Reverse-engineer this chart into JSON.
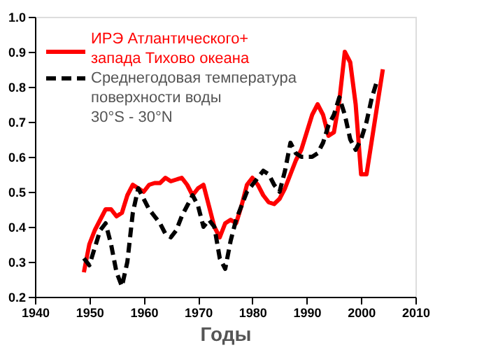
{
  "chart_data": {
    "type": "line",
    "xlabel": "Годы",
    "xlim": [
      1940,
      2010
    ],
    "xticks": [
      1940,
      1950,
      1960,
      1970,
      1980,
      1990,
      2000,
      2010
    ],
    "ylim": [
      0.2,
      1.0
    ],
    "yticks": [
      {
        "value": 0.2,
        "label": "0.2"
      },
      {
        "value": 0.3,
        "label": "0.3"
      },
      {
        "value": 0.4,
        "label": "0.4"
      },
      {
        "value": 0.5,
        "label": "0.5"
      },
      {
        "value": 0.6,
        "label": "0.6"
      },
      {
        "value": 0.7,
        "label": "0.7"
      },
      {
        "value": 0.8,
        "label": "0.8"
      },
      {
        "value": 0.9,
        "label": "0.9"
      },
      {
        "value": 1.0,
        "label": "1.0"
      }
    ],
    "grid": false,
    "legend": "top left",
    "marker": "none",
    "series": [
      {
        "name": "ИРЭ Атлантического+\nзапада Тихово океана",
        "color": "#ff0000",
        "line_style": "solid",
        "x": [
          1949,
          1950,
          1951,
          1952,
          1953,
          1954,
          1955,
          1956,
          1957,
          1958,
          1959,
          1960,
          1961,
          1962,
          1963,
          1964,
          1965,
          1966,
          1967,
          1968,
          1969,
          1970,
          1971,
          1972,
          1973,
          1974,
          1975,
          1976,
          1977,
          1978,
          1979,
          1980,
          1981,
          1982,
          1983,
          1984,
          1985,
          1986,
          1987,
          1988,
          1989,
          1990,
          1991,
          1992,
          1993,
          1994,
          1995,
          1996,
          1997,
          1998,
          1999,
          2000,
          2001,
          2002,
          2003,
          2004
        ],
        "values": [
          0.27,
          0.35,
          0.39,
          0.42,
          0.45,
          0.45,
          0.43,
          0.44,
          0.49,
          0.52,
          0.51,
          0.5,
          0.52,
          0.525,
          0.525,
          0.54,
          0.53,
          0.535,
          0.54,
          0.52,
          0.49,
          0.51,
          0.52,
          0.46,
          0.4,
          0.37,
          0.41,
          0.42,
          0.41,
          0.46,
          0.52,
          0.54,
          0.52,
          0.49,
          0.47,
          0.465,
          0.48,
          0.51,
          0.55,
          0.59,
          0.62,
          0.67,
          0.72,
          0.75,
          0.72,
          0.66,
          0.67,
          0.76,
          0.9,
          0.87,
          0.75,
          0.55,
          0.55,
          0.65,
          0.75,
          0.85
        ]
      },
      {
        "name": "Среднегодовая температура\nповерхности воды\n30°S - 30°N",
        "color": "#000000",
        "line_style": "dashed",
        "x": [
          1949,
          1950,
          1951,
          1952,
          1953,
          1954,
          1955,
          1956,
          1957,
          1958,
          1959,
          1960,
          1961,
          1962,
          1963,
          1964,
          1965,
          1966,
          1967,
          1968,
          1969,
          1970,
          1971,
          1972,
          1973,
          1974,
          1975,
          1976,
          1977,
          1978,
          1979,
          1980,
          1981,
          1982,
          1983,
          1984,
          1985,
          1986,
          1987,
          1988,
          1989,
          1990,
          1991,
          1992,
          1993,
          1994,
          1995,
          1996,
          1997,
          1998,
          1999,
          2000,
          2001,
          2002,
          2003
        ],
        "values": [
          0.31,
          0.29,
          0.34,
          0.39,
          0.41,
          0.35,
          0.27,
          0.23,
          0.3,
          0.44,
          0.51,
          0.48,
          0.45,
          0.43,
          0.41,
          0.38,
          0.37,
          0.39,
          0.43,
          0.46,
          0.49,
          0.46,
          0.4,
          0.42,
          0.4,
          0.31,
          0.28,
          0.36,
          0.42,
          0.46,
          0.5,
          0.52,
          0.54,
          0.56,
          0.55,
          0.52,
          0.5,
          0.56,
          0.64,
          0.61,
          0.6,
          0.6,
          0.6,
          0.61,
          0.64,
          0.69,
          0.72,
          0.77,
          0.72,
          0.65,
          0.62,
          0.65,
          0.7,
          0.77,
          0.82
        ]
      }
    ]
  }
}
